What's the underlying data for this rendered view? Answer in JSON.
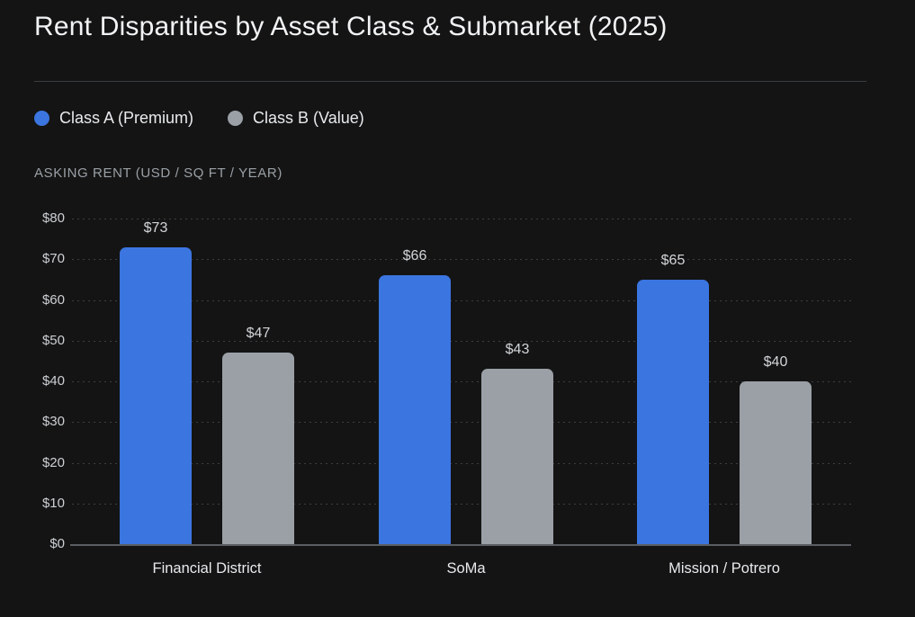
{
  "title": "Rent Disparities by Asset Class & Submarket (2025)",
  "chart_data": {
    "type": "bar",
    "title": "Rent Disparities by Asset Class & Submarket (2025)",
    "ylabel": "ASKING RENT (USD / SQ FT / YEAR)",
    "xlabel": "",
    "categories": [
      "Financial District",
      "SoMa",
      "Mission / Potrero"
    ],
    "series": [
      {
        "name": "Class A (Premium)",
        "color": "#3B75E0",
        "values": [
          73,
          66,
          65
        ]
      },
      {
        "name": "Class B (Value)",
        "color": "#9AA0A6",
        "values": [
          47,
          43,
          40
        ]
      }
    ],
    "value_labels": [
      [
        "$73",
        "$66",
        "$65"
      ],
      [
        "$47",
        "$43",
        "$40"
      ]
    ],
    "value_prefix": "$",
    "yticks": [
      "$0",
      "$10",
      "$20",
      "$30",
      "$40",
      "$50",
      "$60",
      "$70",
      "$80"
    ],
    "ylim": [
      0,
      80
    ],
    "ytick_step": 10,
    "grid": "horizontal-dotted",
    "legend_position": "top-left"
  },
  "colors": {
    "background": "#141414",
    "class_a_blue": "#3B75E0",
    "class_b_gray": "#9AA0A6",
    "divider": "#3B3E42",
    "gridline": "#3C3F43",
    "baseline": "#5A5E62",
    "title_text": "#F2F3F5",
    "muted_text": "#9AA0A6",
    "tick_text": "#CDD0D4",
    "value_text": "#D2D5D9",
    "category_text": "#E8EAED"
  }
}
